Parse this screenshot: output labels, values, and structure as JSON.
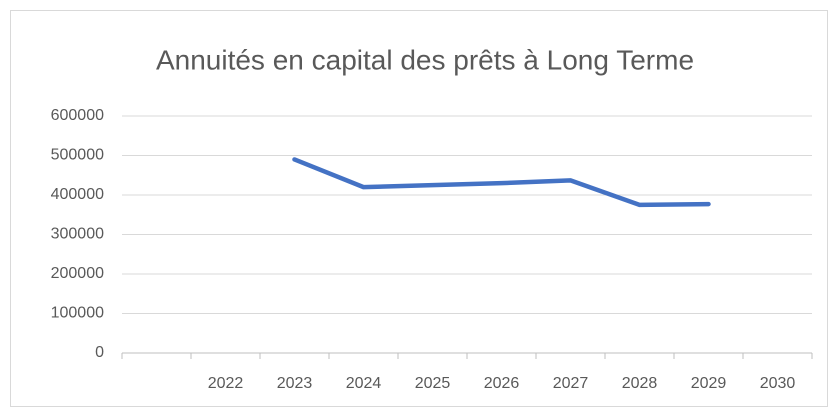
{
  "chart_data": {
    "type": "line",
    "title": "Annuités en capital des prêts à Long Terme",
    "categories": [
      null,
      "2022",
      "2023",
      "2024",
      "2025",
      "2026",
      "2027",
      "2028",
      "2029",
      "2030"
    ],
    "series": [
      {
        "name": "Annuités",
        "color": "#4472c4",
        "values": [
          null,
          null,
          490000,
          420000,
          425000,
          430000,
          437000,
          375000,
          377000,
          null
        ]
      }
    ],
    "ylim": [
      0,
      600000
    ],
    "yticks": [
      0,
      100000,
      200000,
      300000,
      400000,
      500000,
      600000
    ],
    "grid": true
  }
}
